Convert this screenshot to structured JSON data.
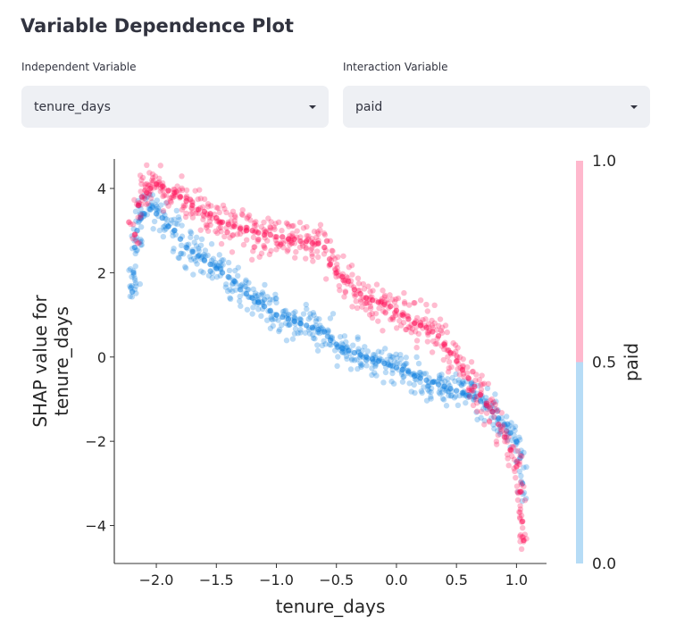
{
  "page": {
    "title": "Variable Dependence Plot"
  },
  "controls": {
    "independent": {
      "label": "Independent Variable",
      "value": "tenure_days"
    },
    "interaction": {
      "label": "Interaction Variable",
      "value": "paid"
    }
  },
  "colors": {
    "low": "#0b7ee0",
    "high": "#ff0d57",
    "colorbar_low": "#b6dcf6",
    "colorbar_high": "#ffb8cd",
    "select_bg": "#eef0f4"
  },
  "chart_data": {
    "type": "scatter",
    "xlabel": "tenure_days",
    "ylabel": "SHAP value for\ntenure_days",
    "xlim": [
      -2.35,
      1.25
    ],
    "ylim": [
      -4.9,
      4.7
    ],
    "xticks": [
      -2.0,
      -1.5,
      -1.0,
      -0.5,
      0.0,
      0.5,
      1.0
    ],
    "xtick_labels": [
      "−2.0",
      "−1.5",
      "−1.0",
      "−0.5",
      "0.0",
      "0.5",
      "1.0"
    ],
    "yticks": [
      4,
      2,
      0,
      -2,
      -4
    ],
    "ytick_labels": [
      "4",
      "2",
      "0",
      "−2",
      "−4"
    ],
    "colorbar": {
      "label": "paid",
      "ticks": [
        1.0,
        0.5,
        0.0
      ],
      "tick_labels": [
        "1.0",
        "0.5",
        "0.0"
      ]
    },
    "series": [
      {
        "name": "paid = 1",
        "color": "#ff0d57",
        "points": [
          [
            -2.18,
            2.9
          ],
          [
            -2.15,
            3.6
          ],
          [
            -2.12,
            3.8
          ],
          [
            -2.08,
            3.9
          ],
          [
            -2.05,
            4.0
          ],
          [
            -2.0,
            4.1
          ],
          [
            -1.95,
            4.05
          ],
          [
            -1.9,
            3.95
          ],
          [
            -1.85,
            3.9
          ],
          [
            -1.8,
            3.8
          ],
          [
            -1.75,
            3.7
          ],
          [
            -1.7,
            3.6
          ],
          [
            -1.65,
            3.5
          ],
          [
            -1.6,
            3.45
          ],
          [
            -1.55,
            3.4
          ],
          [
            -1.5,
            3.3
          ],
          [
            -1.45,
            3.2
          ],
          [
            -1.4,
            3.15
          ],
          [
            -1.35,
            3.1
          ],
          [
            -1.3,
            3.05
          ],
          [
            -1.25,
            3.0
          ],
          [
            -1.2,
            3.0
          ],
          [
            -1.15,
            2.95
          ],
          [
            -1.1,
            2.9
          ],
          [
            -1.05,
            2.9
          ],
          [
            -1.0,
            2.85
          ],
          [
            -0.95,
            2.85
          ],
          [
            -0.9,
            2.8
          ],
          [
            -0.85,
            2.8
          ],
          [
            -0.8,
            2.75
          ],
          [
            -0.75,
            2.75
          ],
          [
            -0.7,
            2.7
          ],
          [
            -0.65,
            2.7
          ],
          [
            -0.6,
            2.6
          ],
          [
            -0.55,
            2.2
          ],
          [
            -0.5,
            2.0
          ],
          [
            -0.45,
            1.9
          ],
          [
            -0.4,
            1.8
          ],
          [
            -0.35,
            1.6
          ],
          [
            -0.3,
            1.5
          ],
          [
            -0.25,
            1.4
          ],
          [
            -0.2,
            1.35
          ],
          [
            -0.15,
            1.3
          ],
          [
            -0.1,
            1.25
          ],
          [
            -0.05,
            1.2
          ],
          [
            0.0,
            1.1
          ],
          [
            0.05,
            1.0
          ],
          [
            0.1,
            0.9
          ],
          [
            0.15,
            0.8
          ],
          [
            0.2,
            0.75
          ],
          [
            0.25,
            0.7
          ],
          [
            0.3,
            0.6
          ],
          [
            0.35,
            0.5
          ],
          [
            0.4,
            0.3
          ],
          [
            0.45,
            0.1
          ],
          [
            0.5,
            -0.1
          ],
          [
            0.55,
            -0.3
          ],
          [
            0.6,
            -0.5
          ],
          [
            0.65,
            -0.7
          ],
          [
            0.7,
            -0.9
          ],
          [
            0.75,
            -1.1
          ],
          [
            0.8,
            -1.3
          ],
          [
            0.85,
            -1.6
          ],
          [
            0.9,
            -1.9
          ],
          [
            0.95,
            -2.2
          ],
          [
            1.0,
            -2.6
          ],
          [
            1.03,
            -3.2
          ],
          [
            1.05,
            -3.9
          ],
          [
            1.06,
            -4.35
          ]
        ]
      },
      {
        "name": "paid = 0",
        "color": "#0b7ee0",
        "points": [
          [
            -2.2,
            1.55
          ],
          [
            -2.19,
            2.0
          ],
          [
            -2.18,
            2.6
          ],
          [
            -2.16,
            3.0
          ],
          [
            -2.13,
            3.3
          ],
          [
            -2.1,
            3.4
          ],
          [
            -2.05,
            3.5
          ],
          [
            -2.0,
            3.4
          ],
          [
            -1.95,
            3.3
          ],
          [
            -1.9,
            3.1
          ],
          [
            -1.85,
            3.0
          ],
          [
            -1.8,
            2.8
          ],
          [
            -1.75,
            2.6
          ],
          [
            -1.7,
            2.5
          ],
          [
            -1.65,
            2.4
          ],
          [
            -1.6,
            2.3
          ],
          [
            -1.55,
            2.2
          ],
          [
            -1.5,
            2.1
          ],
          [
            -1.45,
            2.0
          ],
          [
            -1.4,
            1.9
          ],
          [
            -1.35,
            1.8
          ],
          [
            -1.3,
            1.6
          ],
          [
            -1.25,
            1.5
          ],
          [
            -1.2,
            1.4
          ],
          [
            -1.15,
            1.3
          ],
          [
            -1.1,
            1.2
          ],
          [
            -1.05,
            1.1
          ],
          [
            -1.0,
            1.0
          ],
          [
            -0.95,
            0.95
          ],
          [
            -0.9,
            0.9
          ],
          [
            -0.85,
            0.85
          ],
          [
            -0.8,
            0.8
          ],
          [
            -0.75,
            0.75
          ],
          [
            -0.7,
            0.7
          ],
          [
            -0.65,
            0.65
          ],
          [
            -0.6,
            0.6
          ],
          [
            -0.55,
            0.4
          ],
          [
            -0.5,
            0.3
          ],
          [
            -0.45,
            0.2
          ],
          [
            -0.4,
            0.15
          ],
          [
            -0.35,
            0.1
          ],
          [
            -0.3,
            0.05
          ],
          [
            -0.25,
            0.0
          ],
          [
            -0.2,
            -0.05
          ],
          [
            -0.15,
            -0.1
          ],
          [
            -0.1,
            -0.15
          ],
          [
            -0.05,
            -0.2
          ],
          [
            0.0,
            -0.25
          ],
          [
            0.05,
            -0.3
          ],
          [
            0.1,
            -0.35
          ],
          [
            0.15,
            -0.45
          ],
          [
            0.2,
            -0.5
          ],
          [
            0.25,
            -0.55
          ],
          [
            0.3,
            -0.6
          ],
          [
            0.35,
            -0.65
          ],
          [
            0.4,
            -0.7
          ],
          [
            0.45,
            -0.75
          ],
          [
            0.5,
            -0.8
          ],
          [
            0.55,
            -0.85
          ],
          [
            0.6,
            -0.9
          ],
          [
            0.65,
            -0.95
          ],
          [
            0.7,
            -1.05
          ],
          [
            0.75,
            -1.15
          ],
          [
            0.8,
            -1.3
          ],
          [
            0.85,
            -1.45
          ],
          [
            0.9,
            -1.6
          ],
          [
            0.95,
            -1.8
          ],
          [
            1.0,
            -2.0
          ],
          [
            1.03,
            -2.4
          ],
          [
            1.05,
            -3.0
          ]
        ]
      }
    ]
  }
}
